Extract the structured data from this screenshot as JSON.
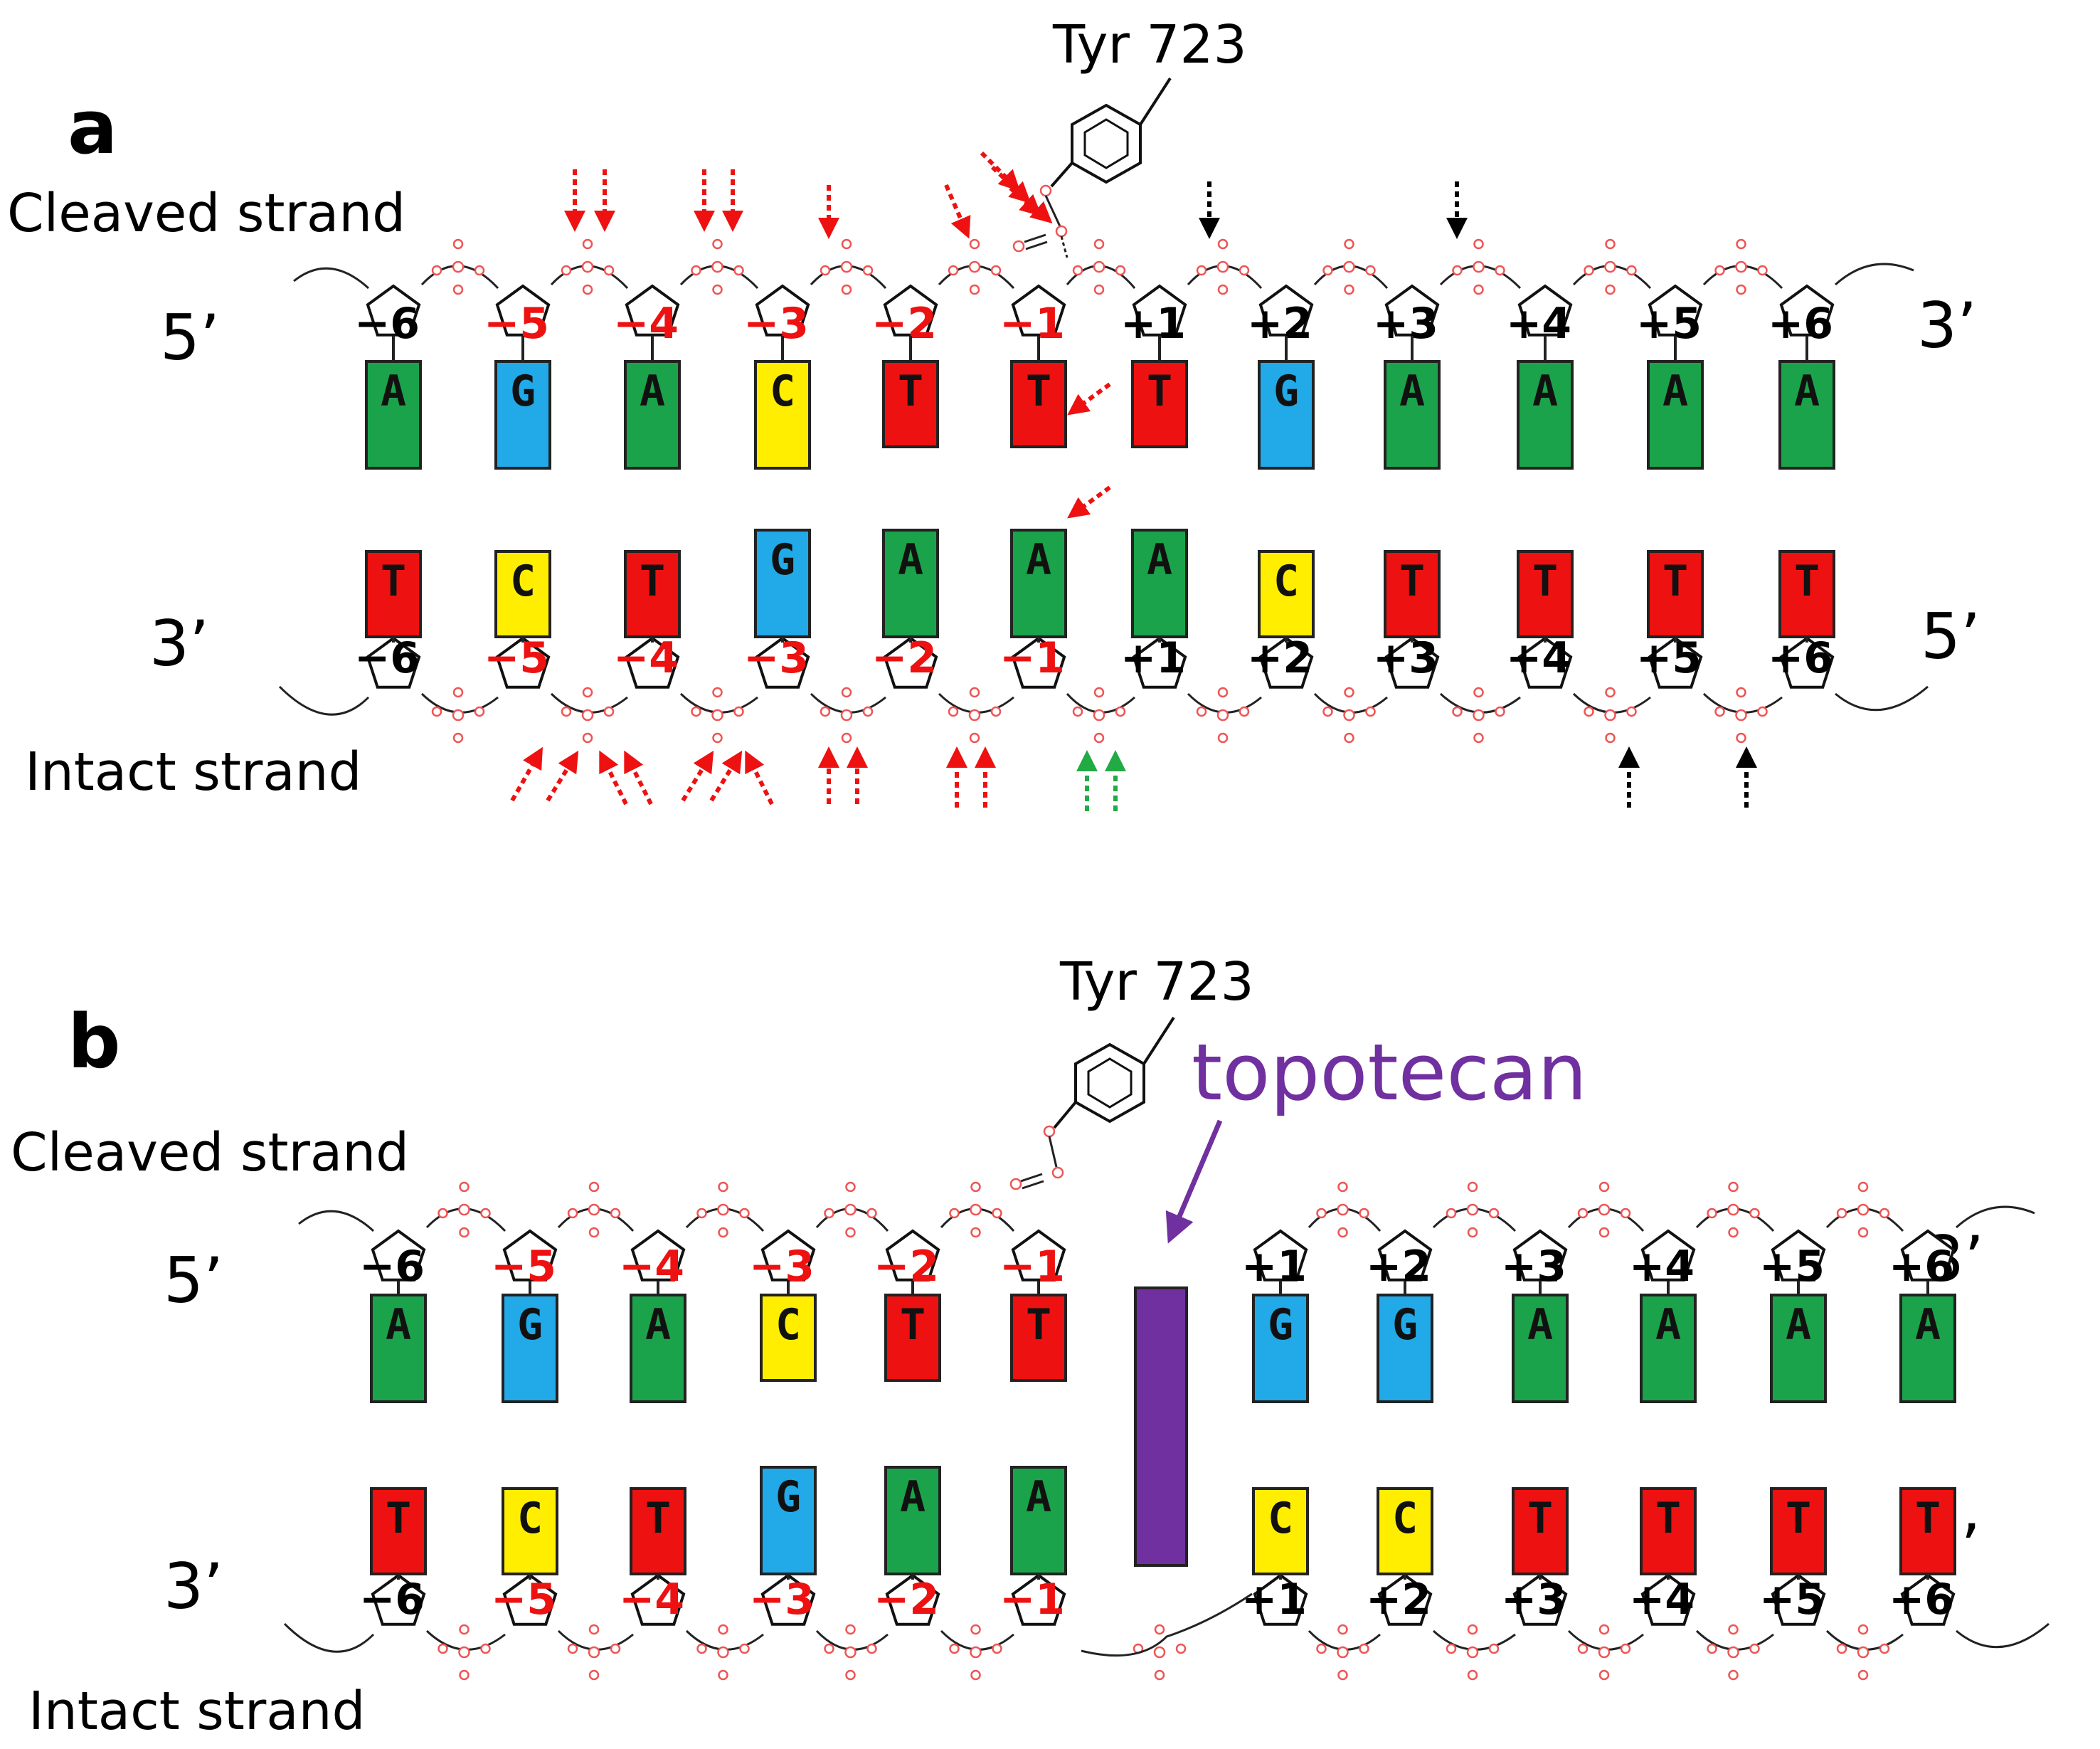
{
  "colors": {
    "A": "#1aa34a",
    "G": "#21a9e8",
    "C": "#ffee00",
    "T": "#ee1111",
    "topotecan": "#7030a0",
    "red_arrow": "#ee1111",
    "green_arrow": "#22aa44",
    "black_arrow": "#000000"
  },
  "positions": [
    "−6",
    "−5",
    "−4",
    "−3",
    "−2",
    "−1",
    "+1",
    "+2",
    "+3",
    "+4",
    "+5",
    "+6"
  ],
  "panels": [
    {
      "letter": "a",
      "tyrosine": "Tyr 723",
      "cleaved_label": "Cleaved strand",
      "intact_label": "Intact strand",
      "top_5": "5’",
      "top_3": "3’",
      "bottom_3": "3’",
      "bottom_5": "5’",
      "top_bases": [
        "A",
        "G",
        "A",
        "C",
        "T",
        "T",
        "T",
        "G",
        "A",
        "A",
        "A",
        "A"
      ],
      "bottom_bases": [
        "T",
        "C",
        "T",
        "G",
        "A",
        "A",
        "A",
        "C",
        "T",
        "T",
        "T",
        "T"
      ],
      "drug_label": ""
    },
    {
      "letter": "b",
      "tyrosine": "Tyr 723",
      "cleaved_label": "Cleaved strand",
      "intact_label": "Intact strand",
      "top_5": "5’",
      "top_3": "3’",
      "bottom_3": "3’",
      "bottom_5": "5’",
      "top_bases": [
        "A",
        "G",
        "A",
        "C",
        "T",
        "T",
        "G",
        "G",
        "A",
        "A",
        "A",
        "A"
      ],
      "bottom_bases": [
        "T",
        "C",
        "T",
        "G",
        "A",
        "A",
        "C",
        "C",
        "T",
        "T",
        "T",
        "T"
      ],
      "drug_label": "topotecan"
    }
  ]
}
